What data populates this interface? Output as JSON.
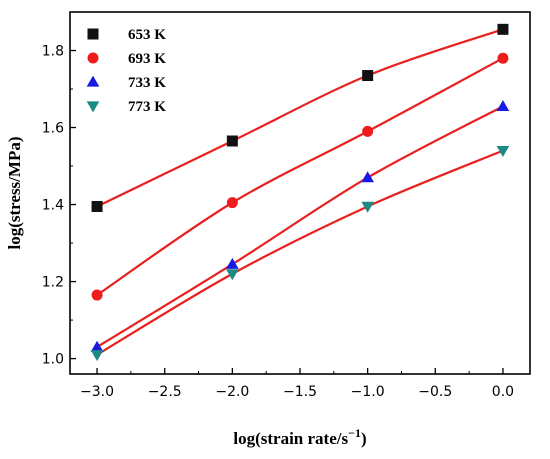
{
  "chart_data": {
    "type": "scatter",
    "xlabel": "log(strain rate/s",
    "xlabel_sup": "−1",
    "xlabel_close": ")",
    "ylabel": "log(stress/MPa)",
    "xlim": [
      -3.2,
      0.2
    ],
    "ylim": [
      0.96,
      1.9
    ],
    "x_ticks": [
      -3.0,
      -2.5,
      -2.0,
      -1.5,
      -1.0,
      -0.5,
      0.0
    ],
    "x_tick_labels": [
      "−3.0",
      "−2.5",
      "−2.0",
      "−1.5",
      "−1.0",
      "−0.5",
      "0.0"
    ],
    "y_ticks": [
      1.0,
      1.2,
      1.4,
      1.6,
      1.8
    ],
    "y_tick_labels": [
      "1.0",
      "1.2",
      "1.4",
      "1.6",
      "1.8"
    ],
    "x": [
      -3.0,
      -2.0,
      -1.0,
      0.0
    ],
    "grid": false,
    "legend_position": "top-left",
    "fit_line_color": "#e8201f",
    "series": [
      {
        "name": "653 K",
        "marker": "square",
        "color": "#111111",
        "values": [
          1.395,
          1.565,
          1.735,
          1.855
        ]
      },
      {
        "name": "693 K",
        "marker": "circle",
        "color": "#ee1c1c",
        "values": [
          1.165,
          1.405,
          1.59,
          1.78
        ]
      },
      {
        "name": "733 K",
        "marker": "triangle-up",
        "color": "#1a1ae6",
        "values": [
          1.03,
          1.245,
          1.47,
          1.655
        ]
      },
      {
        "name": "773 K",
        "marker": "triangle-down",
        "color": "#1b8a85",
        "values": [
          1.01,
          1.22,
          1.395,
          1.54
        ]
      }
    ]
  }
}
